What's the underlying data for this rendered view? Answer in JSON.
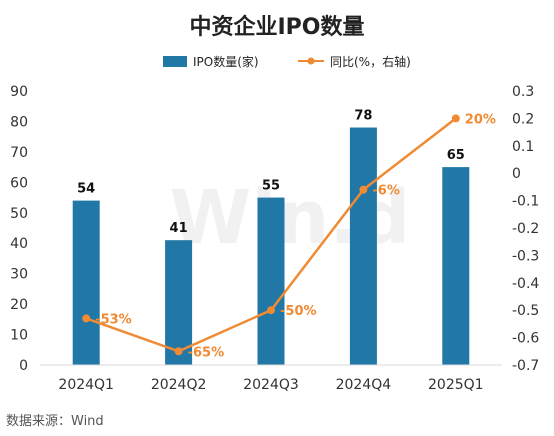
{
  "chart_data": {
    "type": "bar",
    "title": "中资企业IPO数量",
    "categories": [
      "2024Q1",
      "2024Q2",
      "2024Q3",
      "2024Q4",
      "2025Q1"
    ],
    "series": [
      {
        "name": "IPO数量(家)",
        "kind": "bar",
        "axis": "left",
        "color": "#2177a5",
        "values": [
          54,
          41,
          55,
          78,
          65
        ]
      },
      {
        "name": "同比(%，右轴)",
        "kind": "line",
        "axis": "right",
        "color": "#f08a33",
        "values": [
          -0.53,
          -0.65,
          -0.5,
          -0.06,
          0.2
        ],
        "labels": [
          "-53%",
          "-65%",
          "-50%",
          "-6%",
          "20%"
        ]
      }
    ],
    "y_left": {
      "min": 0,
      "max": 90,
      "ticks": [
        "0",
        "10",
        "20",
        "30",
        "40",
        "50",
        "60",
        "70",
        "80",
        "90"
      ]
    },
    "y_right": {
      "min": -0.7,
      "max": 0.3,
      "ticks": [
        "-0.7",
        "-0.6",
        "-0.5",
        "-0.4",
        "-0.3",
        "-0.2",
        "-0.1",
        "0",
        "0.1",
        "0.2",
        "0.3"
      ]
    },
    "grid": false,
    "legend": "top-center",
    "source": "数据来源：Wind",
    "watermark": "Win.d"
  }
}
